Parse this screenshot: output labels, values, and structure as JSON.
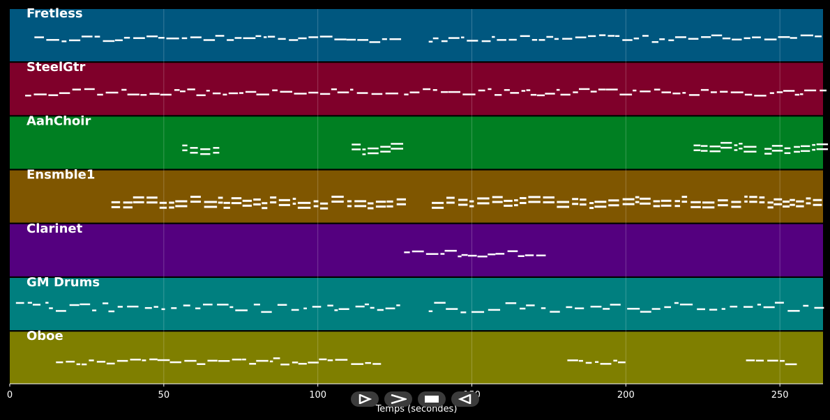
{
  "tracks": [
    {
      "name": "Fretless",
      "color": "#00577f"
    },
    {
      "name": "SteelGtr",
      "color": "#7f002a"
    },
    {
      "name": "AahChoir",
      "color": "#007f22"
    },
    {
      "name": "Ensmble1",
      "color": "#7f5600"
    },
    {
      "name": "Clarinet",
      "color": "#54007f"
    },
    {
      "name": "GM Drums",
      "color": "#007f7f"
    },
    {
      "name": "Oboe",
      "color": "#7f7f00"
    }
  ],
  "x_axis": {
    "label": "Temps (secondes)",
    "ticks": [
      0,
      50,
      100,
      150,
      200,
      250
    ],
    "tick_labels": [
      "0",
      "50",
      "100",
      "150",
      "200",
      "250"
    ],
    "range": [
      0,
      264
    ]
  },
  "note_color": "#ffffff",
  "grid": true,
  "controls": [
    {
      "name": "play-icon"
    },
    {
      "name": "fast-forward-icon"
    },
    {
      "name": "stop-icon"
    },
    {
      "name": "rewind-icon"
    }
  ]
}
